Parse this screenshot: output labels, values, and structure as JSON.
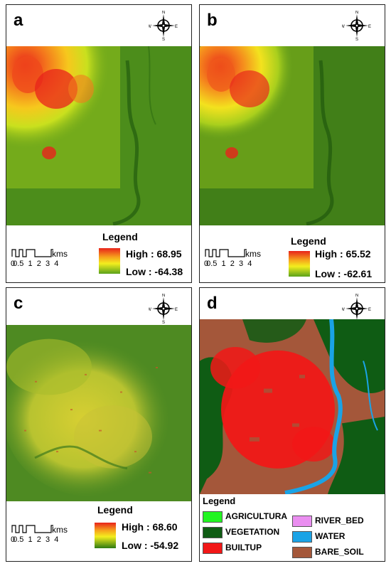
{
  "panels": {
    "a": {
      "label": "a",
      "legend_title": "Legend",
      "high": "High : 68.95",
      "low": "Low : -64.38",
      "scale_ticks": [
        "0",
        "0.5",
        "1",
        "2",
        "3",
        "4"
      ],
      "scale_unit": "kms"
    },
    "b": {
      "label": "b",
      "legend_title": "Legend",
      "high": "High : 65.52",
      "low": "Low : -62.61",
      "scale_ticks": [
        "0",
        "0.5",
        "1",
        "2",
        "3",
        "4"
      ],
      "scale_unit": "kms"
    },
    "c": {
      "label": "c",
      "legend_title": "Legend",
      "high": "High : 68.60",
      "low": "Low : -54.92",
      "scale_ticks": [
        "0",
        "0.5",
        "1",
        "2",
        "3",
        "4"
      ],
      "scale_unit": "kms"
    },
    "d": {
      "label": "d",
      "legend_title": "Legend",
      "classes": [
        {
          "name": "AGRICULTURA",
          "color": "#22f522"
        },
        {
          "name": "VEGETATION",
          "color": "#0f5c14"
        },
        {
          "name": "BUILTUP",
          "color": "#f21717"
        },
        {
          "name": "RIVER_BED",
          "color": "#ea8ef0"
        },
        {
          "name": "WATER",
          "color": "#1aa3e6"
        },
        {
          "name": "BARE_SOIL",
          "color": "#a4573a"
        }
      ]
    }
  },
  "compass": {
    "n": "N",
    "s": "S",
    "e": "E",
    "w": "W"
  },
  "colors": {
    "high": "#e8231b",
    "mid": "#f3ee1e",
    "low": "#3e7f12",
    "base_green": "#4a8c1a"
  }
}
